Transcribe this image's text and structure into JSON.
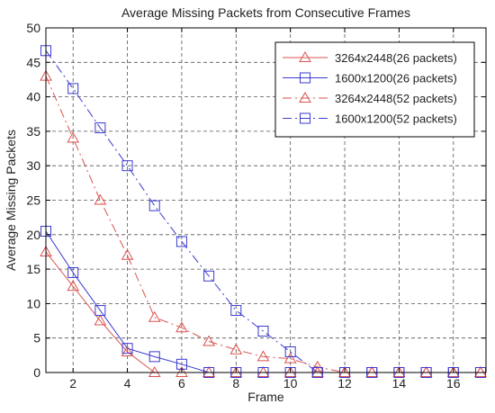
{
  "chart_data": {
    "type": "line",
    "title": "Average Missing Packets from Consecutive Frames",
    "xlabel": "Frame",
    "ylabel": "Average Missing Packets",
    "xlim": [
      1,
      17.2
    ],
    "ylim": [
      0,
      50
    ],
    "xticks": [
      2,
      4,
      6,
      8,
      10,
      12,
      14,
      16
    ],
    "yticks": [
      0,
      5,
      10,
      15,
      20,
      25,
      30,
      35,
      40,
      45,
      50
    ],
    "grid": true,
    "legend_position": "top-right",
    "series": [
      {
        "name": "3264x2448(26 packets)",
        "color": "#d9534f",
        "marker": "triangle",
        "line": "solid",
        "x": [
          1,
          2,
          3,
          4,
          5,
          6,
          7,
          8,
          9,
          10,
          11,
          12,
          13,
          14,
          15,
          16,
          17
        ],
        "y": [
          17.5,
          12.5,
          7.5,
          3,
          0,
          0,
          0,
          0,
          0,
          0,
          0,
          0,
          0,
          0,
          0,
          0,
          0
        ]
      },
      {
        "name": "1600x1200(26 packets)",
        "color": "#3a3ad0",
        "marker": "square",
        "line": "solid",
        "x": [
          1,
          2,
          3,
          4,
          5,
          6,
          7,
          8,
          9,
          10,
          11,
          12,
          13,
          14,
          15,
          16,
          17
        ],
        "y": [
          20.5,
          14.5,
          9,
          3.5,
          2.3,
          1.2,
          0,
          0,
          0,
          0,
          0,
          0,
          0,
          0,
          0,
          0,
          0
        ]
      },
      {
        "name": "3264x2448(52 packets)",
        "color": "#d9534f",
        "marker": "triangle",
        "line": "dashdot",
        "x": [
          1,
          2,
          3,
          4,
          5,
          6,
          7,
          8,
          9,
          10,
          11,
          12,
          13,
          14,
          15,
          16,
          17
        ],
        "y": [
          43,
          34,
          25,
          17,
          8,
          6.5,
          4.5,
          3.3,
          2.3,
          2,
          0.8,
          0,
          0,
          0,
          0,
          0,
          0
        ]
      },
      {
        "name": "1600x1200(52 packets)",
        "color": "#3a3ad0",
        "marker": "square",
        "line": "dashdot",
        "x": [
          1,
          2,
          3,
          4,
          5,
          6,
          7,
          8,
          9,
          10,
          11,
          12,
          13,
          14,
          15,
          16,
          17
        ],
        "y": [
          46.7,
          41.2,
          35.5,
          30,
          24.2,
          19,
          14,
          9,
          6,
          3,
          0,
          0,
          0,
          0,
          0,
          0,
          0
        ]
      }
    ]
  }
}
